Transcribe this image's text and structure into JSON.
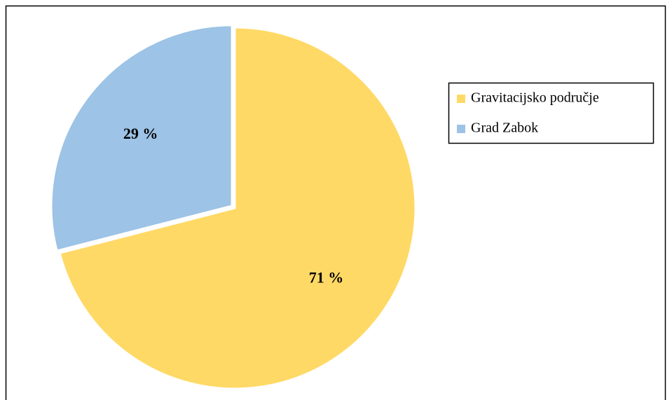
{
  "chart_data": {
    "type": "pie",
    "categories": [
      "Gravitacijsko područje",
      "Grad Zabok"
    ],
    "values": [
      71,
      29
    ],
    "value_labels": [
      "71 %",
      "29 %"
    ],
    "colors": [
      "#FFD966",
      "#9DC3E6"
    ],
    "legend": "right"
  }
}
